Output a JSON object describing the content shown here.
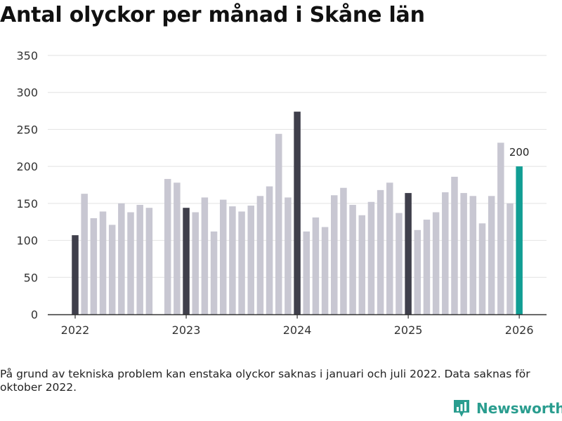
{
  "title": "Antal olyckor per månad i Skåne län",
  "footnote": "På grund av tekniska problem kan enstaka olyckor saknas i januari och juli 2022. Data saknas för oktober 2022.",
  "brand": {
    "name": "Newsworthy",
    "icon": "bar-chart-logo-icon"
  },
  "colors": {
    "january": "#3f3f4b",
    "other": "#c8c7d2",
    "latest": "#119e94",
    "grid": "#e2e2e2",
    "axis": "#333333",
    "brand": "#2a9d8f"
  },
  "chart_data": {
    "type": "bar",
    "ylim": [
      0,
      350
    ],
    "yticks": [
      0,
      50,
      100,
      150,
      200,
      250,
      300,
      350
    ],
    "xticks": [
      "2022",
      "2023",
      "2024",
      "2025",
      "2026"
    ],
    "grid": true,
    "value_label": "200",
    "months": [
      "2022-01",
      "2022-02",
      "2022-03",
      "2022-04",
      "2022-05",
      "2022-06",
      "2022-07",
      "2022-08",
      "2022-09",
      "2022-10",
      "2022-11",
      "2022-12",
      "2023-01",
      "2023-02",
      "2023-03",
      "2023-04",
      "2023-05",
      "2023-06",
      "2023-07",
      "2023-08",
      "2023-09",
      "2023-10",
      "2023-11",
      "2023-12",
      "2024-01",
      "2024-02",
      "2024-03",
      "2024-04",
      "2024-05",
      "2024-06",
      "2024-07",
      "2024-08",
      "2024-09",
      "2024-10",
      "2024-11",
      "2024-12",
      "2025-01",
      "2025-02",
      "2025-03",
      "2025-04",
      "2025-05",
      "2025-06",
      "2025-07",
      "2025-08",
      "2025-09",
      "2025-10",
      "2025-11",
      "2025-12",
      "2026-01"
    ],
    "values": [
      107,
      163,
      130,
      139,
      121,
      150,
      138,
      148,
      144,
      null,
      183,
      178,
      144,
      138,
      158,
      112,
      155,
      146,
      139,
      147,
      160,
      173,
      244,
      158,
      274,
      112,
      131,
      118,
      161,
      171,
      148,
      134,
      152,
      168,
      178,
      137,
      164,
      114,
      128,
      138,
      165,
      186,
      164,
      160,
      123,
      160,
      232,
      150,
      200
    ]
  }
}
